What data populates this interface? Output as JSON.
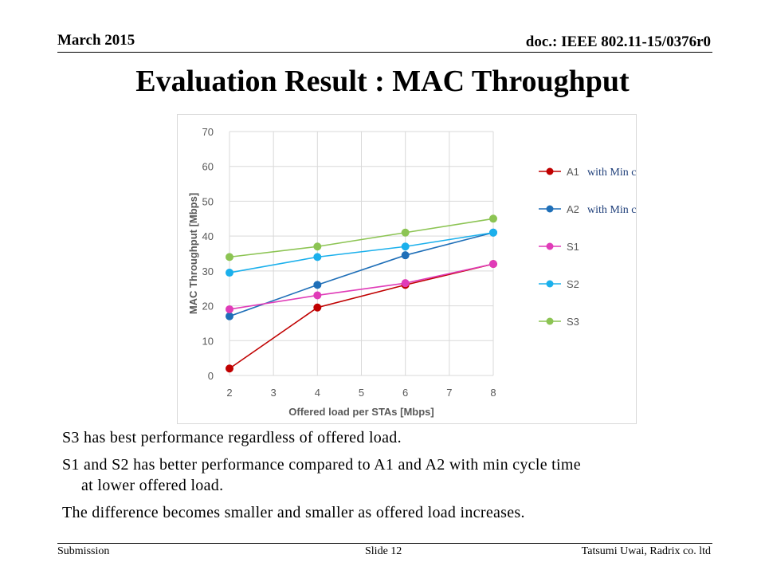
{
  "header": {
    "date": "March 2015",
    "doc_id": "doc.: IEEE 802.11-15/0376r0"
  },
  "title": "Evaluation Result : MAC Throughput",
  "chart_data": {
    "type": "line",
    "xlabel": "Offered load per STAs [Mbps]",
    "ylabel": "MAC Throughput [Mbps]",
    "xlim": [
      2,
      8
    ],
    "ylim": [
      0,
      70
    ],
    "x_ticks": [
      2,
      3,
      4,
      5,
      6,
      7,
      8
    ],
    "y_ticks": [
      0,
      10,
      20,
      30,
      40,
      50,
      60,
      70
    ],
    "grid": true,
    "legend_position": "right",
    "x": [
      2,
      4,
      6,
      8
    ],
    "series": [
      {
        "name": "A1",
        "note": "with Min cycle time",
        "color": "#c00000",
        "values": [
          2,
          19.5,
          26,
          32
        ]
      },
      {
        "name": "A2",
        "note": "with Min cycle time",
        "color": "#1f6fb8",
        "values": [
          17,
          26,
          34.5,
          41
        ]
      },
      {
        "name": "S1",
        "note": "",
        "color": "#e03cb8",
        "values": [
          19,
          23,
          26.5,
          32
        ]
      },
      {
        "name": "S2",
        "note": "",
        "color": "#1bb0ec",
        "values": [
          29.5,
          34,
          37,
          41
        ]
      },
      {
        "name": "S3",
        "note": "",
        "color": "#8cc453",
        "values": [
          34,
          37,
          41,
          45
        ]
      }
    ]
  },
  "bullets": {
    "line1": "S3 has best performance regardless of offered load.",
    "line2a": "S1 and S2 has better performance compared to A1 and A2 with min cycle time",
    "line2b": "at lower offered load.",
    "line3": "The difference becomes smaller and smaller as offered load increases."
  },
  "footer": {
    "left": "Submission",
    "center": "Slide 12",
    "right": "Tatsumi Uwai, Radrix co. ltd"
  }
}
